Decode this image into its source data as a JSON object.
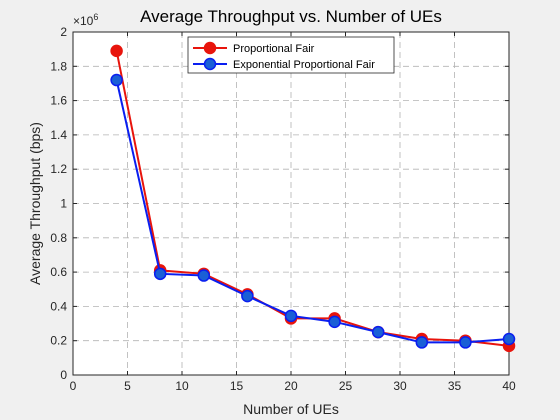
{
  "chart_data": {
    "type": "line",
    "title": "Average Throughput vs. Number of UEs",
    "xlabel": "Number of UEs",
    "ylabel": "Average Throughput (bps)",
    "exponent_label": "×10",
    "exponent_power": "6",
    "xlim": [
      0,
      40
    ],
    "ylim": [
      0,
      2
    ],
    "xticks": [
      0,
      5,
      10,
      15,
      20,
      25,
      30,
      35,
      40
    ],
    "yticks": [
      0,
      0.2,
      0.4,
      0.6,
      0.8,
      1,
      1.2,
      1.4,
      1.6,
      1.8,
      2
    ],
    "xtick_labels": [
      "0",
      "5",
      "10",
      "15",
      "20",
      "25",
      "30",
      "35",
      "40"
    ],
    "ytick_labels": [
      "0",
      "0.2",
      "0.4",
      "0.6",
      "0.8",
      "1",
      "1.2",
      "1.4",
      "1.6",
      "1.8",
      "2"
    ],
    "grid": true,
    "legend_position": "top",
    "x": [
      4,
      8,
      12,
      16,
      20,
      24,
      28,
      32,
      36,
      40
    ],
    "series": [
      {
        "name": "Proportional Fair",
        "color": "#e8140c",
        "marker_fill": "#e8140c",
        "values": [
          1.89,
          0.61,
          0.59,
          0.47,
          0.33,
          0.33,
          0.25,
          0.21,
          0.2,
          0.17
        ]
      },
      {
        "name": "Exponential Proportional Fair",
        "color": "#0a1ef0",
        "marker_fill": "#1a5fd6",
        "values": [
          1.72,
          0.59,
          0.58,
          0.46,
          0.345,
          0.31,
          0.25,
          0.19,
          0.19,
          0.21
        ]
      }
    ]
  }
}
